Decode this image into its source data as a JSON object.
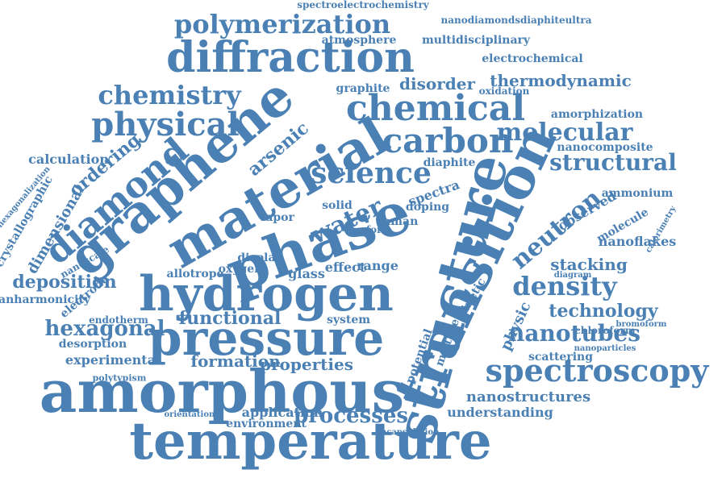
{
  "theme": {
    "word_color": "#4a80b4",
    "background": "#ffffff"
  },
  "words": [
    "temperature",
    "amorphous",
    "pressure",
    "hydrogen",
    "phase",
    "structure",
    "transition",
    "graphene",
    "diffraction",
    "material",
    "chemical",
    "spectroscopy",
    "diamond",
    "carbon",
    "physical",
    "science",
    "polymerization",
    "chemistry",
    "density",
    "molecular",
    "neutron",
    "structural",
    "nanotubes",
    "water",
    "hexagonal",
    "processes",
    "technology",
    "functional",
    "deposition",
    "ordering",
    "properties",
    "nanostructures",
    "formation",
    "dimensional",
    "thermodynamic",
    "disorder",
    "stacking",
    "spectroelectrochemistry",
    "nanodiamondsdiaphiteultra",
    "atmosphere",
    "multidisciplinary",
    "electrochemical",
    "calculation",
    "experimental",
    "application",
    "understanding",
    "nanoflakes",
    "observed",
    "desorption",
    "arsenic",
    "glass",
    "effect",
    "range",
    "crystallographic",
    "hexagonalization",
    "anharmonicity",
    "electrode",
    "graphite",
    "oxidation",
    "amorphization",
    "nanocomposite",
    "physic",
    "diaphite",
    "doping",
    "raman",
    "spectra",
    "allotrope",
    "display",
    "oxygen",
    "system",
    "potential",
    "mixture",
    "kinetic",
    "scattering",
    "nanoparticles",
    "ammonium",
    "calorimetry",
    "molecule",
    "diagram",
    "chloroform",
    "bromoform",
    "environment",
    "encapsulation",
    "orientational",
    "polytypism",
    "endotherm",
    "nanoscale",
    "vapor",
    "solid",
    "form"
  ]
}
